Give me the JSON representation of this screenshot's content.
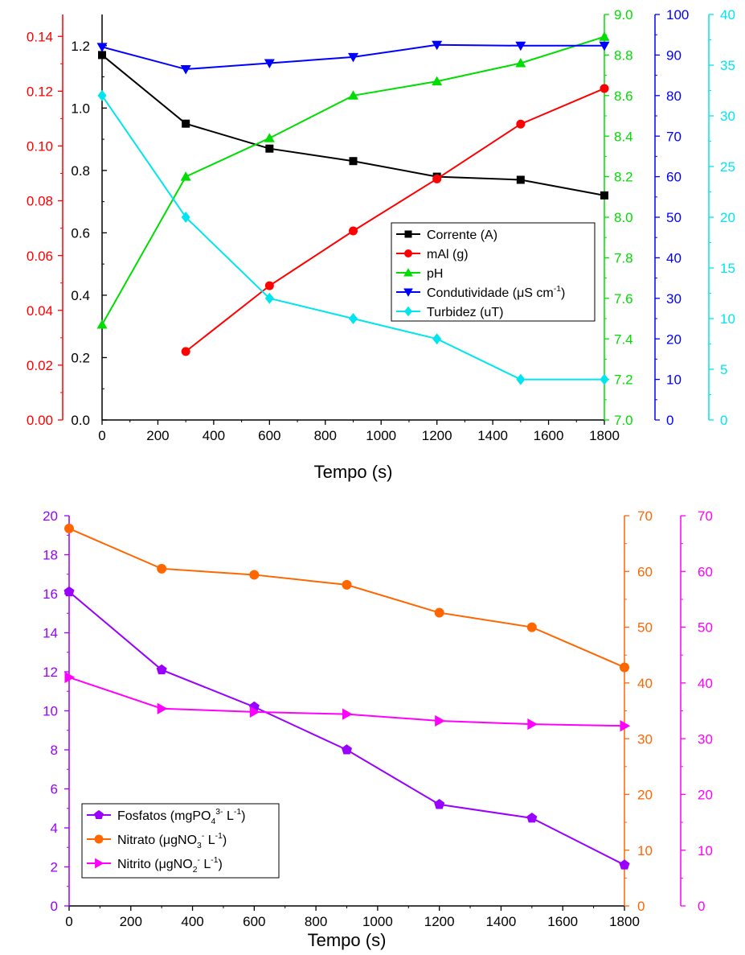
{
  "chart_data": [
    {
      "type": "line",
      "x": [
        0,
        300,
        600,
        900,
        1200,
        1500,
        1800
      ],
      "xlabel": "Tempo (s)",
      "xlim": [
        0,
        1800
      ],
      "xticks": [
        0,
        200,
        400,
        600,
        800,
        1000,
        1200,
        1400,
        1600,
        1800
      ],
      "legend_position": "center-right",
      "axes": [
        {
          "id": "current",
          "color": "#000000",
          "ylim": [
            0,
            1.3
          ],
          "ticks": [
            0,
            0.2,
            0.4,
            0.6,
            0.8,
            1.0,
            1.2
          ],
          "decimals": 1
        },
        {
          "id": "mass",
          "color": "#ff0000",
          "ylim": [
            0,
            0.148
          ],
          "ticks": [
            0,
            0.02,
            0.04,
            0.06,
            0.08,
            0.1,
            0.12,
            0.14
          ],
          "decimals": 2
        },
        {
          "id": "ph",
          "color": "#00dd00",
          "ylim": [
            7.0,
            9.0
          ],
          "ticks": [
            7.0,
            7.2,
            7.4,
            7.6,
            7.8,
            8.0,
            8.2,
            8.4,
            8.6,
            8.8,
            9.0
          ],
          "decimals": 1
        },
        {
          "id": "cond",
          "color": "#0000ff",
          "ylim": [
            0,
            100
          ],
          "ticks": [
            0,
            10,
            20,
            30,
            40,
            50,
            60,
            70,
            80,
            90,
            100
          ],
          "decimals": 0
        },
        {
          "id": "turb",
          "color": "#00e5ee",
          "ylim": [
            0,
            40
          ],
          "ticks": [
            0,
            5,
            10,
            15,
            20,
            25,
            30,
            35,
            40
          ],
          "decimals": 0
        }
      ],
      "series": [
        {
          "axis": "current",
          "marker": "square",
          "color": "#000000",
          "legend": {
            "main": "Corrente (A)"
          },
          "x": [
            0,
            300,
            600,
            900,
            1200,
            1500,
            1800
          ],
          "values": [
            1.17,
            0.95,
            0.87,
            0.83,
            0.78,
            0.77,
            0.72
          ]
        },
        {
          "axis": "mass",
          "marker": "circle",
          "color": "#ff0000",
          "legend": {
            "main": "mAl (g)"
          },
          "x": [
            300,
            600,
            900,
            1200,
            1500,
            1800
          ],
          "values": [
            0.025,
            0.049,
            0.069,
            0.088,
            0.108,
            0.121
          ]
        },
        {
          "axis": "ph",
          "marker": "triangle-up",
          "color": "#00dd00",
          "legend": {
            "main": "pH"
          },
          "x": [
            0,
            300,
            600,
            900,
            1200,
            1500,
            1800
          ],
          "values": [
            7.47,
            8.2,
            8.39,
            8.6,
            8.67,
            8.76,
            8.89
          ]
        },
        {
          "axis": "cond",
          "marker": "triangle-down",
          "color": "#0000ff",
          "legend": {
            "main": "Condutividade (",
            "mu": "μ",
            "mid": "S cm",
            "sup": "-1",
            "end": ")"
          },
          "x": [
            0,
            300,
            600,
            900,
            1200,
            1500,
            1800
          ],
          "values": [
            92,
            86.5,
            88,
            89.5,
            92.5,
            92.3,
            92.3
          ]
        },
        {
          "axis": "turb",
          "marker": "diamond",
          "color": "#00e5ee",
          "legend": {
            "main": "Turbidez (uT)"
          },
          "x": [
            0,
            300,
            600,
            900,
            1200,
            1500,
            1800
          ],
          "values": [
            32,
            20,
            12,
            10,
            8,
            4,
            4
          ]
        }
      ]
    },
    {
      "type": "line",
      "x": [
        0,
        300,
        600,
        900,
        1200,
        1500,
        1800
      ],
      "xlabel": "Tempo (s)",
      "xlim": [
        0,
        1800
      ],
      "xticks": [
        0,
        200,
        400,
        600,
        800,
        1000,
        1200,
        1400,
        1600,
        1800
      ],
      "legend_position": "bottom-left",
      "axes": [
        {
          "id": "phos",
          "color": "#9900ff",
          "ylim": [
            0,
            20
          ],
          "ticks": [
            0,
            2,
            4,
            6,
            8,
            10,
            12,
            14,
            16,
            18,
            20
          ],
          "decimals": 0
        },
        {
          "id": "nitrate",
          "color": "#ff6600",
          "ylim": [
            0,
            70
          ],
          "ticks": [
            0,
            10,
            20,
            30,
            40,
            50,
            60,
            70
          ],
          "decimals": 0
        },
        {
          "id": "nitrite",
          "color": "#ff00ff",
          "ylim": [
            0,
            70
          ],
          "ticks": [
            0,
            10,
            20,
            30,
            40,
            50,
            60,
            70
          ],
          "decimals": 0
        }
      ],
      "series": [
        {
          "axis": "phos",
          "marker": "pentagon",
          "color": "#9900ff",
          "legend": {
            "main": "Fosfatos (mgPO",
            "sub": "4",
            "sup": "3-",
            "end": " L",
            "sup2": "-1",
            "end2": ")"
          },
          "x": [
            0,
            300,
            600,
            900,
            1200,
            1500,
            1800
          ],
          "values": [
            16.1,
            12.1,
            10.2,
            8.0,
            5.2,
            4.5,
            2.1
          ]
        },
        {
          "axis": "nitrate",
          "marker": "ball",
          "color": "#ff6600",
          "legend": {
            "main": "Nitrato (",
            "mu": "μ",
            "mid": "gNO",
            "sub": "3",
            "sup": "-",
            "end": " L",
            "sup2": "-1",
            "end2": ")"
          },
          "x": [
            0,
            300,
            600,
            900,
            1200,
            1500,
            1800
          ],
          "values": [
            67.7,
            60.5,
            59.4,
            57.6,
            52.6,
            50.0,
            42.8
          ]
        },
        {
          "axis": "nitrite",
          "marker": "triangle-right",
          "color": "#ff00ff",
          "legend": {
            "main": "Nitrito (",
            "mu": "μ",
            "mid": "gNO",
            "sub": "2",
            "sup": "-",
            "end": " L",
            "sup2": "-1",
            "end2": ")"
          },
          "x": [
            0,
            300,
            600,
            900,
            1200,
            1500,
            1800
          ],
          "values": [
            41,
            35.4,
            34.8,
            34.4,
            33.2,
            32.6,
            32.3
          ]
        }
      ]
    }
  ]
}
